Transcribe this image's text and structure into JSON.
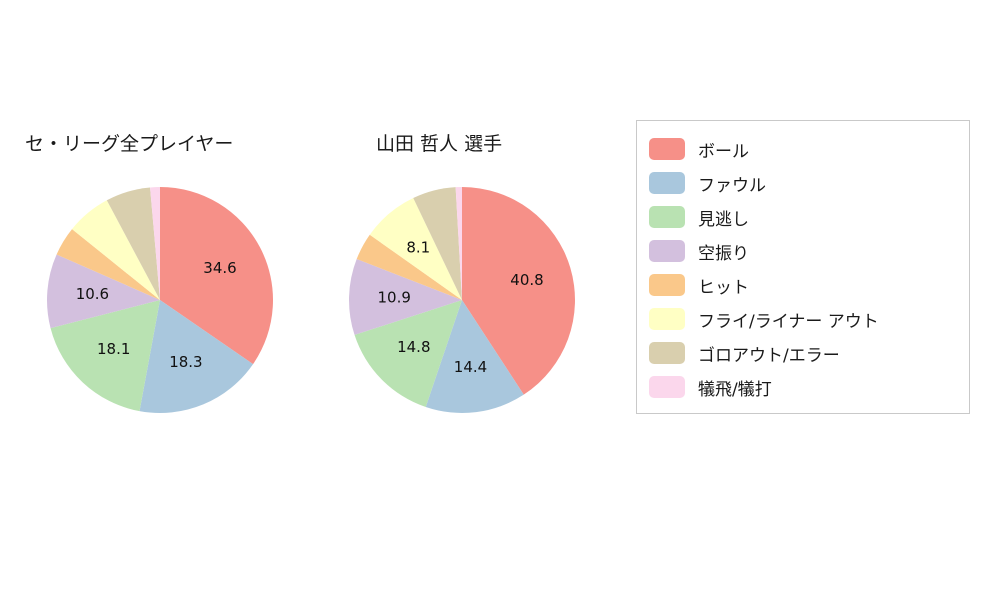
{
  "chart_data": [
    {
      "type": "pie",
      "title": "セ・リーグ全プレイヤー",
      "categories": [
        "ボール",
        "ファウル",
        "見逃し",
        "空振り",
        "ヒット",
        "フライ/ライナー アウト",
        "ゴロアウト/エラー",
        "犠飛/犠打"
      ],
      "values": [
        34.6,
        18.3,
        18.1,
        10.6,
        4.2,
        6.4,
        6.4,
        1.4
      ],
      "data_labels": [
        "34.6",
        "18.3",
        "18.1",
        "10.6",
        "",
        "",
        "",
        ""
      ],
      "start_angle": "top",
      "direction": "clockwise"
    },
    {
      "type": "pie",
      "title": "山田 哲人  選手",
      "categories": [
        "ボール",
        "ファウル",
        "見逃し",
        "空振り",
        "ヒット",
        "フライ/ライナー アウト",
        "ゴロアウト/エラー",
        "犠飛/犠打"
      ],
      "values": [
        40.8,
        14.4,
        14.8,
        10.9,
        3.9,
        8.1,
        6.2,
        0.9
      ],
      "data_labels": [
        "40.8",
        "14.4",
        "14.8",
        "10.9",
        "",
        "8.1",
        "",
        ""
      ],
      "start_angle": "top",
      "direction": "clockwise"
    }
  ],
  "legend": {
    "position": "right",
    "entries": [
      {
        "label": "ボール",
        "color": "#f69088"
      },
      {
        "label": "ファウル",
        "color": "#a9c7dd"
      },
      {
        "label": "見逃し",
        "color": "#b9e2b2"
      },
      {
        "label": "空振り",
        "color": "#d3c0de"
      },
      {
        "label": "ヒット",
        "color": "#fac88a"
      },
      {
        "label": "フライ/ライナー アウト",
        "color": "#ffffc4"
      },
      {
        "label": "ゴロアウト/エラー",
        "color": "#d9cfae"
      },
      {
        "label": "犠飛/犠打",
        "color": "#fbd7ec"
      }
    ]
  }
}
